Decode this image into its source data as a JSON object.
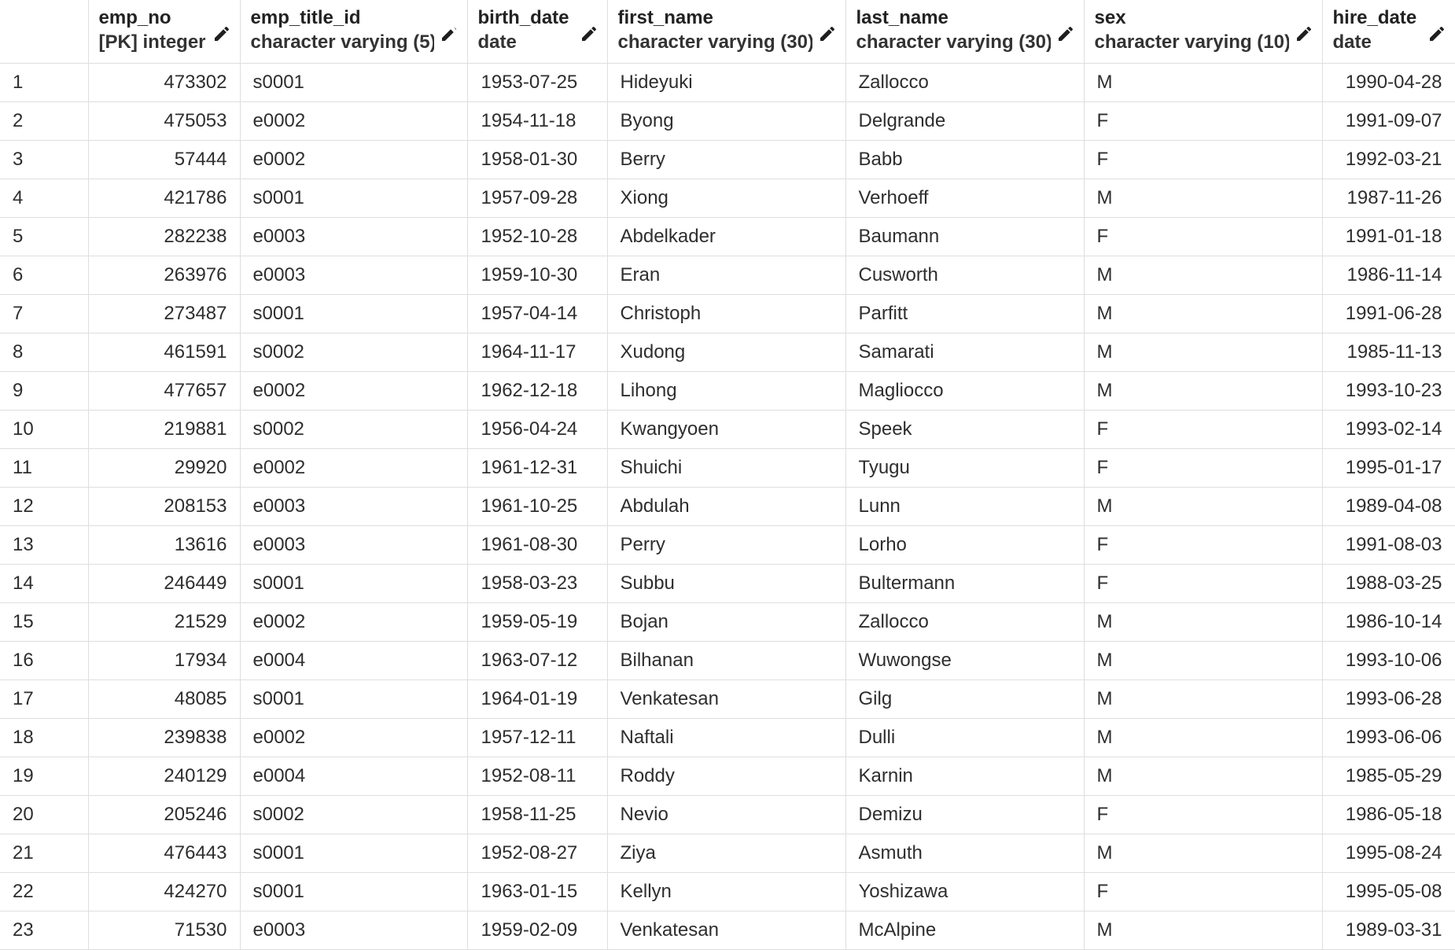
{
  "grid": {
    "columns": [
      {
        "key": "emp_no",
        "name": "emp_no",
        "type": "[PK] integer"
      },
      {
        "key": "emp_title_id",
        "name": "emp_title_id",
        "type": "character varying (5)"
      },
      {
        "key": "birth_date",
        "name": "birth_date",
        "type": "date"
      },
      {
        "key": "first_name",
        "name": "first_name",
        "type": "character varying (30)"
      },
      {
        "key": "last_name",
        "name": "last_name",
        "type": "character varying (30)"
      },
      {
        "key": "sex",
        "name": "sex",
        "type": "character varying (10)"
      },
      {
        "key": "hire_date",
        "name": "hire_date",
        "type": "date"
      }
    ],
    "edit_icon": "pencil-icon",
    "rows": [
      {
        "n": "1",
        "emp_no": "473302",
        "emp_title_id": "s0001",
        "birth_date": "1953-07-25",
        "first_name": "Hideyuki",
        "last_name": "Zallocco",
        "sex": "M",
        "hire_date": "1990-04-28"
      },
      {
        "n": "2",
        "emp_no": "475053",
        "emp_title_id": "e0002",
        "birth_date": "1954-11-18",
        "first_name": "Byong",
        "last_name": "Delgrande",
        "sex": "F",
        "hire_date": "1991-09-07"
      },
      {
        "n": "3",
        "emp_no": "57444",
        "emp_title_id": "e0002",
        "birth_date": "1958-01-30",
        "first_name": "Berry",
        "last_name": "Babb",
        "sex": "F",
        "hire_date": "1992-03-21"
      },
      {
        "n": "4",
        "emp_no": "421786",
        "emp_title_id": "s0001",
        "birth_date": "1957-09-28",
        "first_name": "Xiong",
        "last_name": "Verhoeff",
        "sex": "M",
        "hire_date": "1987-11-26"
      },
      {
        "n": "5",
        "emp_no": "282238",
        "emp_title_id": "e0003",
        "birth_date": "1952-10-28",
        "first_name": "Abdelkader",
        "last_name": "Baumann",
        "sex": "F",
        "hire_date": "1991-01-18"
      },
      {
        "n": "6",
        "emp_no": "263976",
        "emp_title_id": "e0003",
        "birth_date": "1959-10-30",
        "first_name": "Eran",
        "last_name": "Cusworth",
        "sex": "M",
        "hire_date": "1986-11-14"
      },
      {
        "n": "7",
        "emp_no": "273487",
        "emp_title_id": "s0001",
        "birth_date": "1957-04-14",
        "first_name": "Christoph",
        "last_name": "Parfitt",
        "sex": "M",
        "hire_date": "1991-06-28"
      },
      {
        "n": "8",
        "emp_no": "461591",
        "emp_title_id": "s0002",
        "birth_date": "1964-11-17",
        "first_name": "Xudong",
        "last_name": "Samarati",
        "sex": "M",
        "hire_date": "1985-11-13"
      },
      {
        "n": "9",
        "emp_no": "477657",
        "emp_title_id": "e0002",
        "birth_date": "1962-12-18",
        "first_name": "Lihong",
        "last_name": "Magliocco",
        "sex": "M",
        "hire_date": "1993-10-23"
      },
      {
        "n": "10",
        "emp_no": "219881",
        "emp_title_id": "s0002",
        "birth_date": "1956-04-24",
        "first_name": "Kwangyoen",
        "last_name": "Speek",
        "sex": "F",
        "hire_date": "1993-02-14"
      },
      {
        "n": "11",
        "emp_no": "29920",
        "emp_title_id": "e0002",
        "birth_date": "1961-12-31",
        "first_name": "Shuichi",
        "last_name": "Tyugu",
        "sex": "F",
        "hire_date": "1995-01-17"
      },
      {
        "n": "12",
        "emp_no": "208153",
        "emp_title_id": "e0003",
        "birth_date": "1961-10-25",
        "first_name": "Abdulah",
        "last_name": "Lunn",
        "sex": "M",
        "hire_date": "1989-04-08"
      },
      {
        "n": "13",
        "emp_no": "13616",
        "emp_title_id": "e0003",
        "birth_date": "1961-08-30",
        "first_name": "Perry",
        "last_name": "Lorho",
        "sex": "F",
        "hire_date": "1991-08-03"
      },
      {
        "n": "14",
        "emp_no": "246449",
        "emp_title_id": "s0001",
        "birth_date": "1958-03-23",
        "first_name": "Subbu",
        "last_name": "Bultermann",
        "sex": "F",
        "hire_date": "1988-03-25"
      },
      {
        "n": "15",
        "emp_no": "21529",
        "emp_title_id": "e0002",
        "birth_date": "1959-05-19",
        "first_name": "Bojan",
        "last_name": "Zallocco",
        "sex": "M",
        "hire_date": "1986-10-14"
      },
      {
        "n": "16",
        "emp_no": "17934",
        "emp_title_id": "e0004",
        "birth_date": "1963-07-12",
        "first_name": "Bilhanan",
        "last_name": "Wuwongse",
        "sex": "M",
        "hire_date": "1993-10-06"
      },
      {
        "n": "17",
        "emp_no": "48085",
        "emp_title_id": "s0001",
        "birth_date": "1964-01-19",
        "first_name": "Venkatesan",
        "last_name": "Gilg",
        "sex": "M",
        "hire_date": "1993-06-28"
      },
      {
        "n": "18",
        "emp_no": "239838",
        "emp_title_id": "e0002",
        "birth_date": "1957-12-11",
        "first_name": "Naftali",
        "last_name": "Dulli",
        "sex": "M",
        "hire_date": "1993-06-06"
      },
      {
        "n": "19",
        "emp_no": "240129",
        "emp_title_id": "e0004",
        "birth_date": "1952-08-11",
        "first_name": "Roddy",
        "last_name": "Karnin",
        "sex": "M",
        "hire_date": "1985-05-29"
      },
      {
        "n": "20",
        "emp_no": "205246",
        "emp_title_id": "s0002",
        "birth_date": "1958-11-25",
        "first_name": "Nevio",
        "last_name": "Demizu",
        "sex": "F",
        "hire_date": "1986-05-18"
      },
      {
        "n": "21",
        "emp_no": "476443",
        "emp_title_id": "s0001",
        "birth_date": "1952-08-27",
        "first_name": "Ziya",
        "last_name": "Asmuth",
        "sex": "M",
        "hire_date": "1995-08-24"
      },
      {
        "n": "22",
        "emp_no": "424270",
        "emp_title_id": "s0001",
        "birth_date": "1963-01-15",
        "first_name": "Kellyn",
        "last_name": "Yoshizawa",
        "sex": "F",
        "hire_date": "1995-05-08"
      },
      {
        "n": "23",
        "emp_no": "71530",
        "emp_title_id": "e0003",
        "birth_date": "1959-02-09",
        "first_name": "Venkatesan",
        "last_name": "McAlpine",
        "sex": "M",
        "hire_date": "1989-03-31"
      }
    ]
  }
}
